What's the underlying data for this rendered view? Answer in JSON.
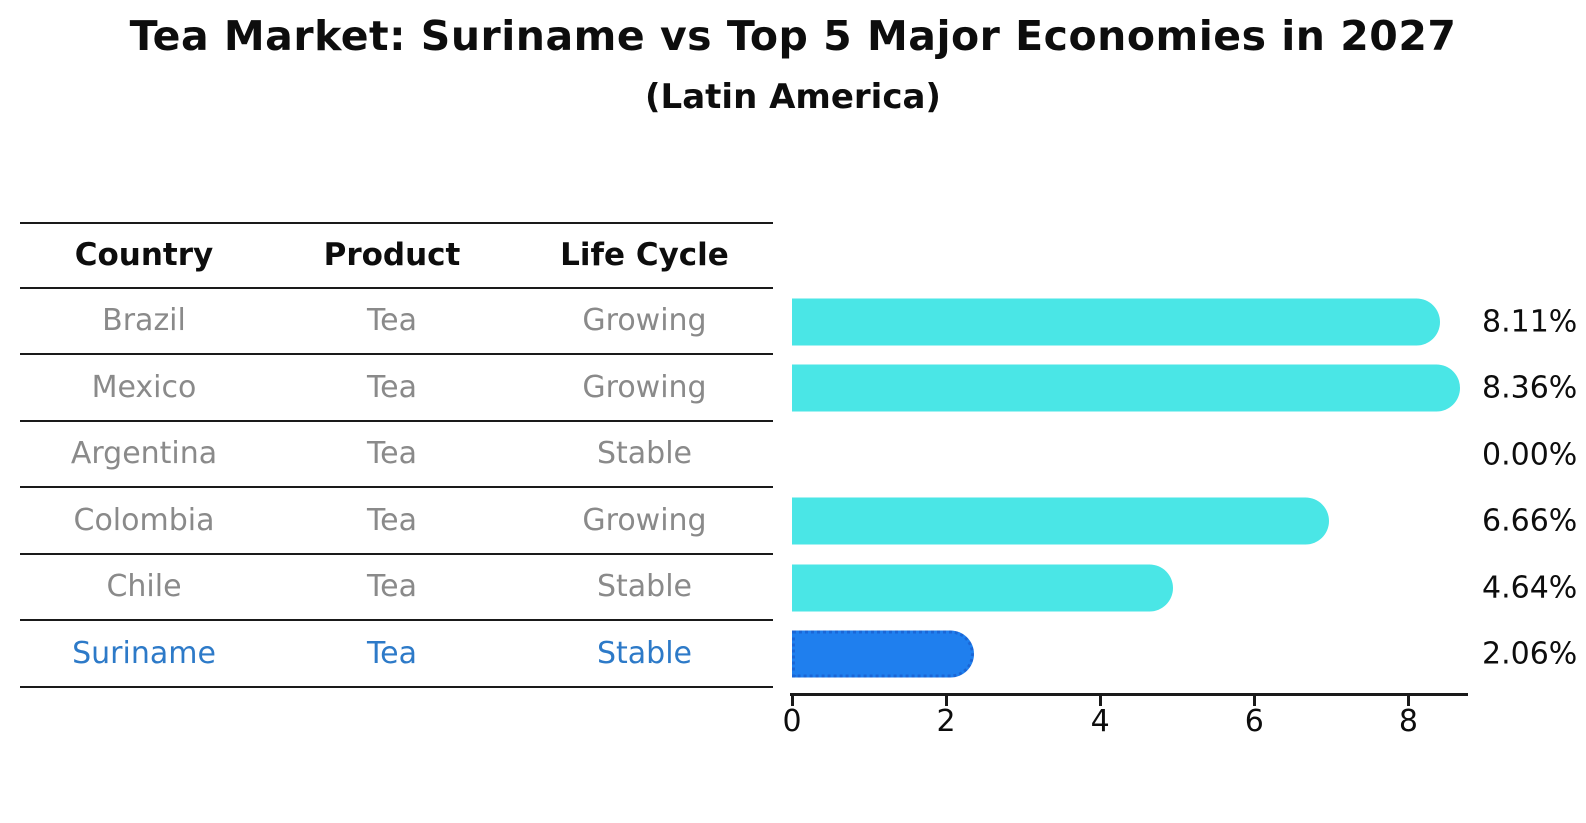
{
  "title": "Tea Market: Suriname vs Top 5 Major Economies in 2027",
  "subtitle": "(Latin America)",
  "table": {
    "headers": [
      "Country",
      "Product",
      "Life Cycle"
    ],
    "rows": [
      {
        "country": "Brazil",
        "product": "Tea",
        "life_cycle": "Growing",
        "highlight": false
      },
      {
        "country": "Mexico",
        "product": "Tea",
        "life_cycle": "Growing",
        "highlight": false
      },
      {
        "country": "Argentina",
        "product": "Tea",
        "life_cycle": "Stable",
        "highlight": false
      },
      {
        "country": "Colombia",
        "product": "Tea",
        "life_cycle": "Growing",
        "highlight": false
      },
      {
        "country": "Chile",
        "product": "Tea",
        "life_cycle": "Stable",
        "highlight": false
      },
      {
        "country": "Suriname",
        "product": "Tea",
        "life_cycle": "Stable",
        "highlight": true
      }
    ]
  },
  "chart_data": {
    "type": "bar",
    "orientation": "horizontal",
    "categories": [
      "Brazil",
      "Mexico",
      "Argentina",
      "Colombia",
      "Chile",
      "Suriname"
    ],
    "values": [
      8.11,
      8.36,
      0.0,
      6.66,
      4.64,
      2.06
    ],
    "value_labels": [
      "8.11%",
      "8.36%",
      "0.00%",
      "6.66%",
      "4.64%",
      "2.06%"
    ],
    "xticks": [
      0,
      2,
      4,
      6,
      8
    ],
    "xlim": [
      0,
      8.77
    ],
    "grid": false,
    "legend": "none",
    "bar_color": "#4ae6e6",
    "highlight_index": 5,
    "highlight_bar_color": "#1f7fee",
    "highlight_border_color": "#1a66d6",
    "highlight_text_color": "#2d7ac8",
    "axis_color": "#1a1a1a",
    "text_color": "#0d0d0d",
    "muted_text_color": "#8a8a8a"
  }
}
